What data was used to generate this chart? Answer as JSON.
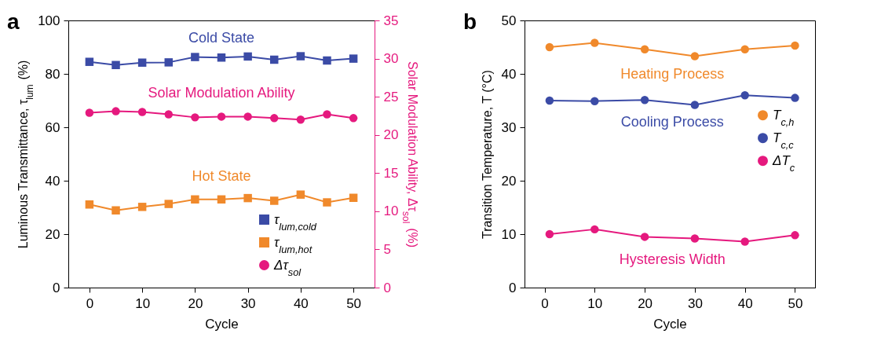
{
  "chart_data": [
    {
      "type": "line",
      "title": "a",
      "xlabel": "Cycle",
      "ylabel": "Luminous Transmittance, τ$_{lum}$ (%)",
      "y2label": "Solar Modulation Ability, Δτ$_{sol}$ (%)",
      "x": [
        0,
        5,
        10,
        15,
        20,
        25,
        30,
        35,
        40,
        45,
        50
      ],
      "xlim": [
        -4,
        54
      ],
      "xticks": [
        0,
        10,
        20,
        30,
        40,
        50
      ],
      "ylim": [
        0,
        100
      ],
      "yticks": [
        0,
        20,
        40,
        60,
        80,
        100
      ],
      "y2lim": [
        0,
        35
      ],
      "y2ticks": [
        0,
        5,
        10,
        15,
        20,
        25,
        30,
        35
      ],
      "legend": "bottom right",
      "series": [
        {
          "name": "τ$_{lum,cold}$",
          "color": "#3b4ba6",
          "marker": "square",
          "values": [
            84.5,
            83.3,
            84.2,
            84.3,
            86.3,
            86.1,
            86.5,
            85.3,
            86.6,
            85.0,
            85.7
          ]
        },
        {
          "name": "τ$_{lum,hot}$",
          "color": "#f0892b",
          "marker": "square",
          "values": [
            31.1,
            28.9,
            30.2,
            31.3,
            33.0,
            33.0,
            33.5,
            32.5,
            34.8,
            31.9,
            33.6
          ]
        },
        {
          "name": "Δτ$_{sol}$",
          "color": "#e5197e",
          "marker": "circle",
          "axis": "y2",
          "values": [
            22.9,
            23.1,
            23.0,
            22.7,
            22.3,
            22.4,
            22.4,
            22.2,
            22.0,
            22.7,
            22.2
          ]
        }
      ],
      "annotations": [
        "Cold State",
        "Hot State",
        "Solar Modulation Ability"
      ]
    },
    {
      "type": "line",
      "title": "b",
      "xlabel": "Cycle",
      "ylabel": "Transition Temperature, T (°C)",
      "x": [
        1,
        10,
        20,
        30,
        40,
        50
      ],
      "xlim": [
        -4,
        54
      ],
      "xticks": [
        0,
        10,
        20,
        30,
        40,
        50
      ],
      "ylim": [
        0,
        50
      ],
      "yticks": [
        0,
        10,
        20,
        30,
        40,
        50
      ],
      "legend": "right",
      "series": [
        {
          "name": "T$_{c,h}$",
          "color": "#f0892b",
          "marker": "circle",
          "values": [
            45.0,
            45.8,
            44.6,
            43.3,
            44.6,
            45.3
          ]
        },
        {
          "name": "T$_{c,c}$",
          "color": "#3b4ba6",
          "marker": "circle",
          "values": [
            35.0,
            34.9,
            35.1,
            34.2,
            36.0,
            35.5
          ]
        },
        {
          "name": "ΔT$_{c}$",
          "color": "#e5197e",
          "marker": "circle",
          "values": [
            10.0,
            10.9,
            9.5,
            9.2,
            8.6,
            9.8
          ]
        }
      ],
      "annotations": [
        "Heating Process",
        "Cooling Process",
        "Hysteresis Width"
      ]
    }
  ]
}
